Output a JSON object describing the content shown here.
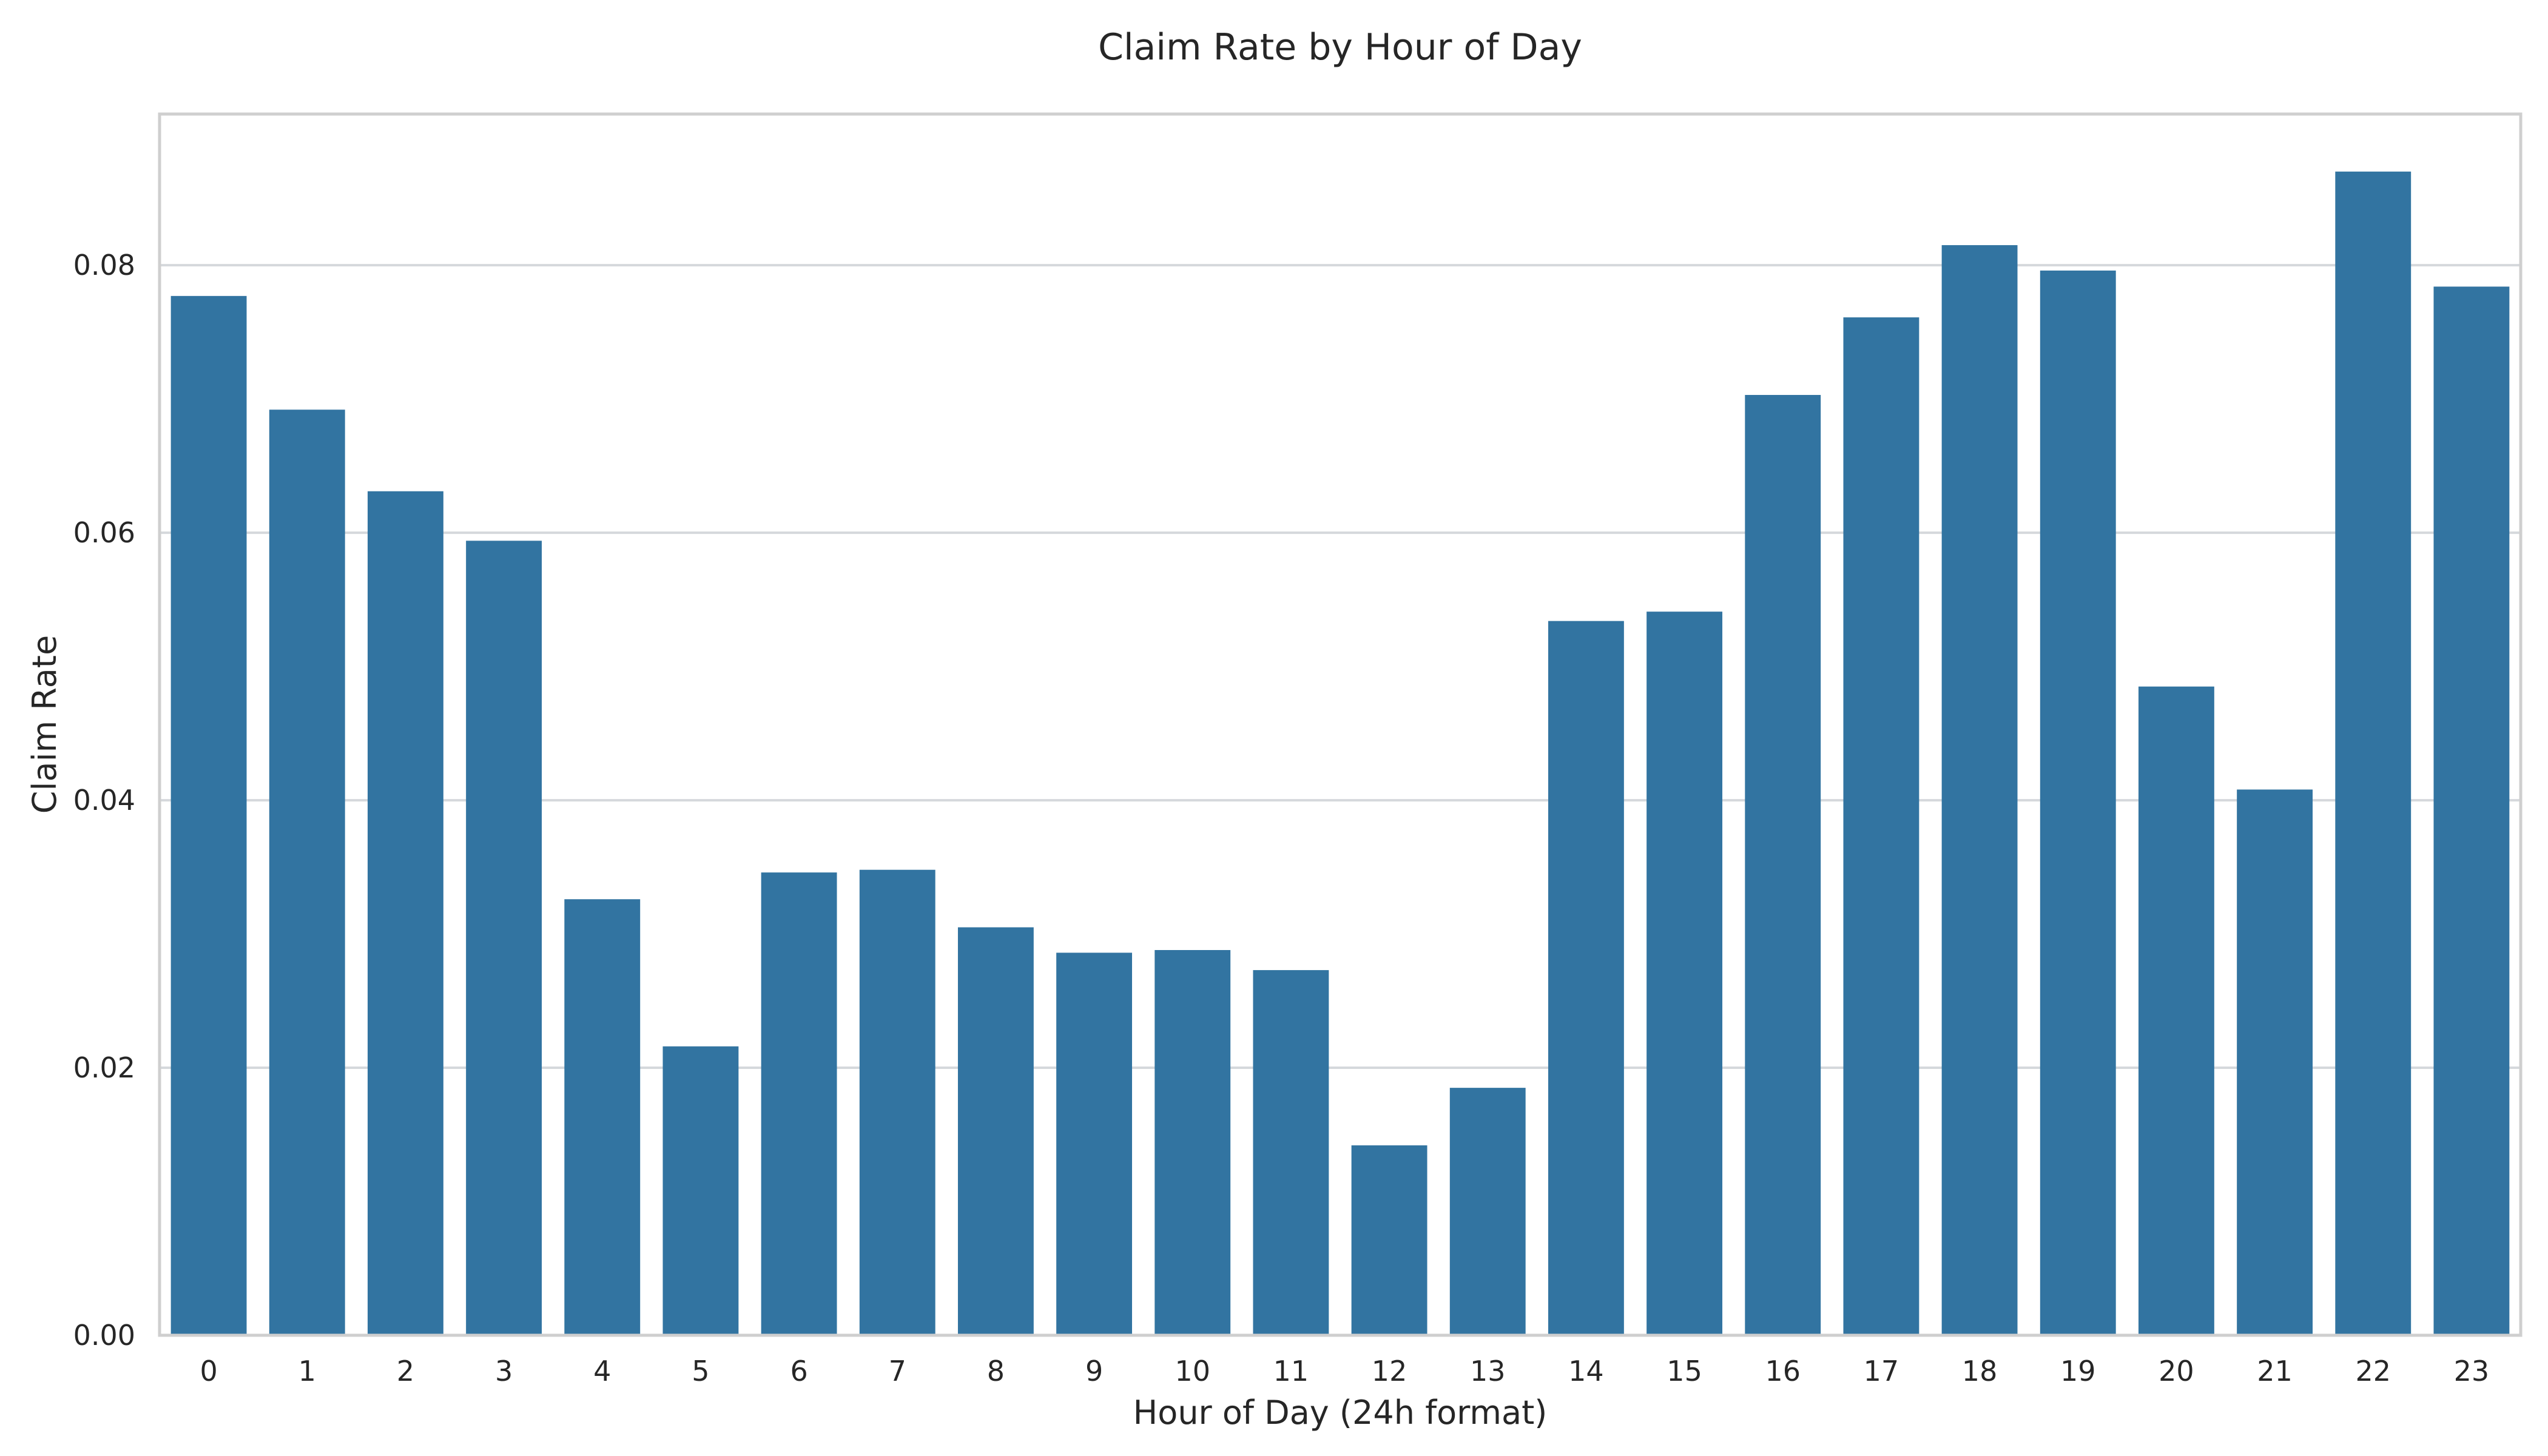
{
  "chart_data": {
    "type": "bar",
    "title": "Claim Rate by Hour of Day",
    "xlabel": "Hour of Day (24h format)",
    "ylabel": "Claim Rate",
    "categories": [
      "0",
      "1",
      "2",
      "3",
      "4",
      "5",
      "6",
      "7",
      "8",
      "9",
      "10",
      "11",
      "12",
      "13",
      "14",
      "15",
      "16",
      "17",
      "18",
      "19",
      "20",
      "21",
      "22",
      "23"
    ],
    "values": [
      0.0777,
      0.0692,
      0.0631,
      0.0594,
      0.0326,
      0.0216,
      0.0346,
      0.0348,
      0.0305,
      0.0286,
      0.0288,
      0.0273,
      0.0142,
      0.0185,
      0.0534,
      0.0541,
      0.0703,
      0.0761,
      0.0815,
      0.0796,
      0.0485,
      0.0408,
      0.087,
      0.0784
    ],
    "ylim": [
      0,
      0.0913
    ],
    "yticks": [
      0.0,
      0.02,
      0.04,
      0.06,
      0.08
    ],
    "ytick_labels": [
      "0.00",
      "0.02",
      "0.04",
      "0.06",
      "0.08"
    ],
    "bar_color": "#3274a1",
    "grid": true,
    "legend": false
  }
}
